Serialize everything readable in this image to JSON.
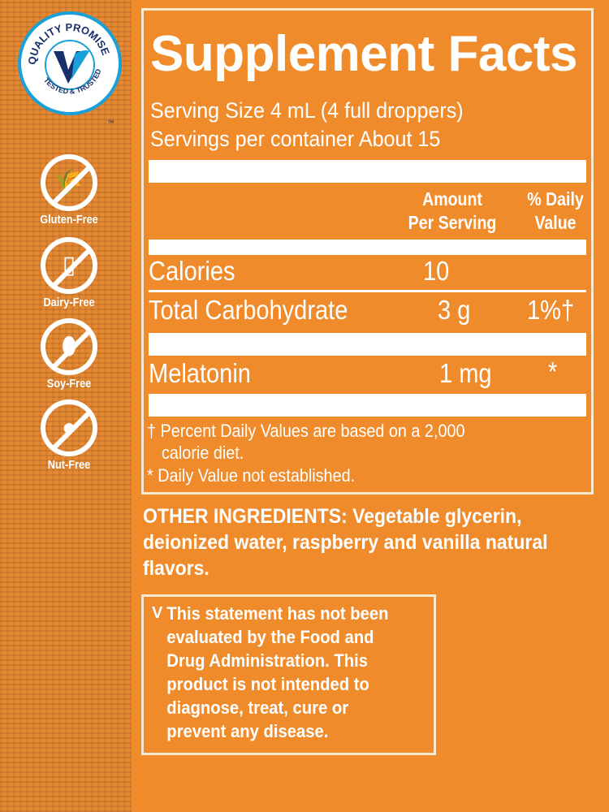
{
  "badges": {
    "seal": {
      "top_text": "QUALITY PROMISE",
      "bottom_text": "TESTED & TRUSTED",
      "trademark": "™"
    },
    "items": [
      {
        "label": "Gluten-Free",
        "icon": "wheat-icon",
        "glyph": "🌾"
      },
      {
        "label": "Dairy-Free",
        "icon": "milk-bottle-icon",
        "glyph": "▯"
      },
      {
        "label": "Soy-Free",
        "icon": "soybean-icon",
        "glyph": "⬮"
      },
      {
        "label": "Nut-Free",
        "icon": "peanut-icon",
        "glyph": "●"
      }
    ]
  },
  "facts": {
    "title": "Supplement Facts",
    "serving_size": "Serving Size 4 mL (4 full droppers)",
    "servings_per_container": "Servings per container About 15",
    "col_amount": "Amount Per Serving",
    "col_amount_1": "Amount",
    "col_amount_2": "Per Serving",
    "col_dv_1": "% Daily",
    "col_dv_2": "Value",
    "rows": [
      {
        "name": "Calories",
        "amount": "10",
        "dv": ""
      },
      {
        "name": "Total Carbohydrate",
        "amount": "3 g",
        "dv": "1%†"
      },
      {
        "name": "Melatonin",
        "amount": "1 mg",
        "dv": "*"
      }
    ],
    "footnote_1a": "† Percent Daily Values are based on a 2,000",
    "footnote_1b": "calorie diet.",
    "footnote_2": "* Daily Value not established."
  },
  "other_ingredients": {
    "label": "OTHER INGREDIENTS:",
    "text": " Vegetable glycerin, deionized water, raspberry and vanilla natural flavors."
  },
  "disclaimer": {
    "mark": "V",
    "text": "This statement has not been\nevaluated by the Food and\nDrug Administration. This\nproduct is not intended to\ndiagnose, treat, cure or\nprevent any disease."
  },
  "colors": {
    "background": "#f08b2c",
    "text": "#ffffff",
    "seal_blue": "#1aa0d8",
    "seal_navy": "#17306b"
  }
}
